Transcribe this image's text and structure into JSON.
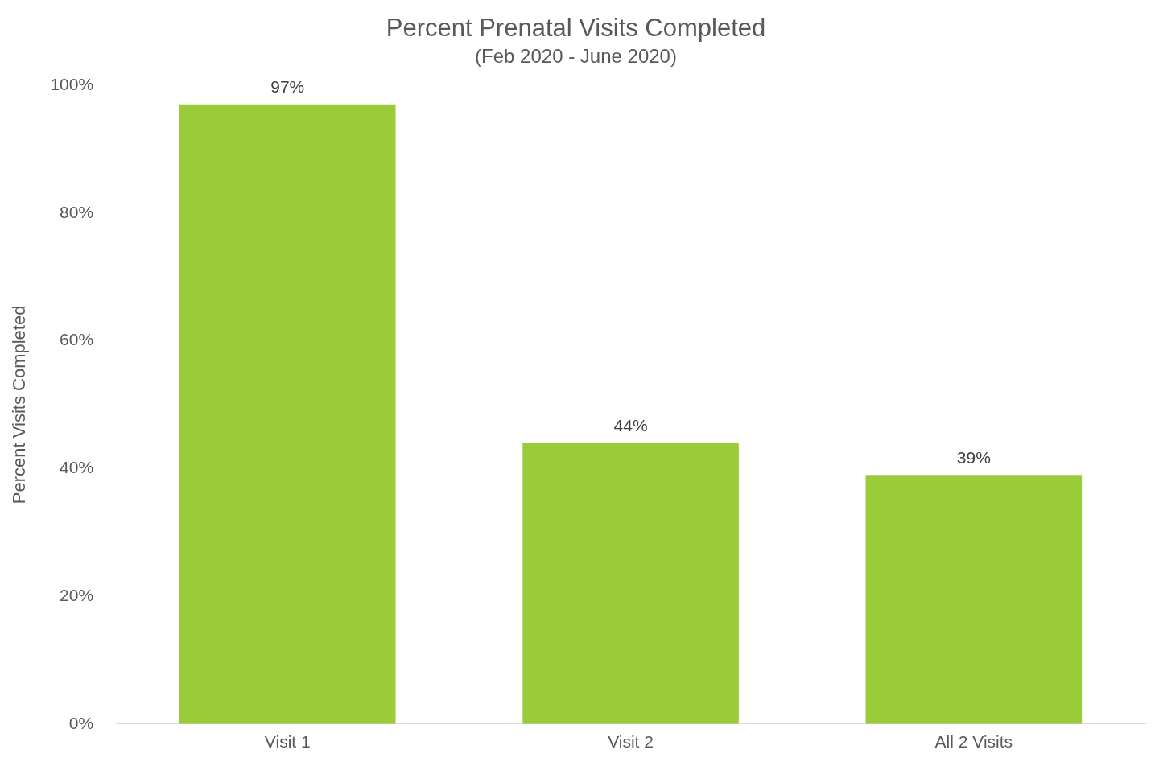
{
  "chart_data": {
    "type": "bar",
    "title": "Percent Prenatal Visits Completed",
    "subtitle": "(Feb 2020 - June 2020)",
    "ylabel": "Percent Visits Completed",
    "categories": [
      "Visit 1",
      "Visit 2",
      "All 2 Visits"
    ],
    "values": [
      97,
      44,
      39
    ],
    "color": "#9acb38",
    "value_labels": [
      "97%",
      "44%",
      "39%"
    ],
    "ylim": [
      0,
      100
    ],
    "yticks": [
      {
        "value": 0,
        "label": "0%"
      },
      {
        "value": 20,
        "label": "20%"
      },
      {
        "value": 40,
        "label": "40%"
      },
      {
        "value": 60,
        "label": "60%"
      },
      {
        "value": 80,
        "label": "80%"
      },
      {
        "value": 100,
        "label": "100%"
      }
    ],
    "grid": false,
    "legend": false
  }
}
